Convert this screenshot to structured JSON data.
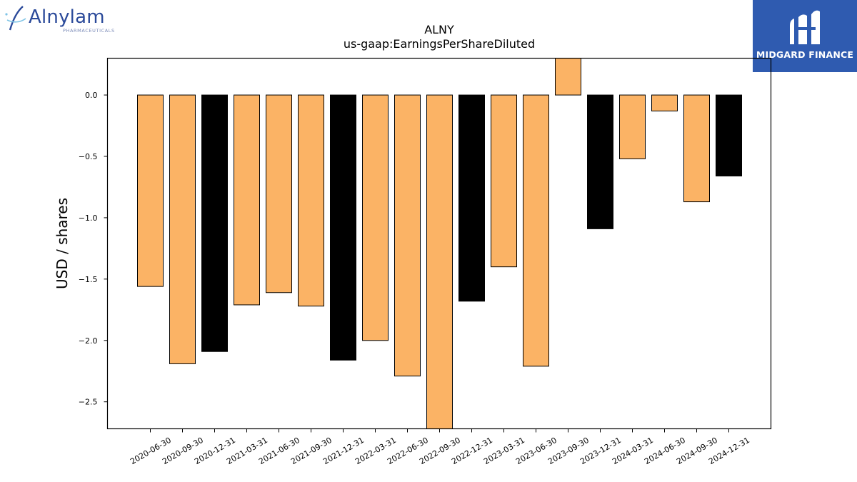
{
  "branding": {
    "left_logo_name": "Alnylam",
    "left_logo_sub": "PHARMACEUTICALS",
    "right_logo_name": "MIDGARD FINANCE"
  },
  "colors": {
    "accent_bar": "#fbb365",
    "highlight_bar": "#000000",
    "edge": "#000000",
    "midgard_blue": "#2f5bb0",
    "alnylam_blue": "#2b4a9a"
  },
  "chart_data": {
    "type": "bar",
    "title": "ALNY",
    "subtitle": "us-gaap:EarningsPerShareDiluted",
    "xlabel": "",
    "ylabel": "USD / shares",
    "ylim": [
      -2.72,
      0.3
    ],
    "yticks": [
      0.0,
      -0.5,
      -1.0,
      -1.5,
      -2.0,
      -2.5
    ],
    "ytick_labels": [
      "0.0",
      "−0.5",
      "−1.0",
      "−1.5",
      "−2.0",
      "−2.5"
    ],
    "grid": false,
    "categories": [
      "2020-06-30",
      "2020-09-30",
      "2020-12-31",
      "2021-03-31",
      "2021-06-30",
      "2021-09-30",
      "2021-12-31",
      "2022-03-31",
      "2022-06-30",
      "2022-09-30",
      "2022-12-31",
      "2023-03-31",
      "2023-06-30",
      "2023-09-30",
      "2023-12-31",
      "2024-03-31",
      "2024-06-30",
      "2024-09-30",
      "2024-12-31"
    ],
    "values": [
      -1.56,
      -2.19,
      -2.09,
      -1.71,
      -1.61,
      -1.72,
      -2.16,
      -2.0,
      -2.29,
      -2.72,
      -1.68,
      -1.4,
      -2.21,
      0.31,
      -1.09,
      -0.52,
      -0.13,
      -0.87,
      -0.66
    ],
    "bar_colors": [
      "#fbb365",
      "#fbb365",
      "#000000",
      "#fbb365",
      "#fbb365",
      "#fbb365",
      "#000000",
      "#fbb365",
      "#fbb365",
      "#fbb365",
      "#000000",
      "#fbb365",
      "#fbb365",
      "#fbb365",
      "#000000",
      "#fbb365",
      "#fbb365",
      "#fbb365",
      "#000000"
    ]
  }
}
